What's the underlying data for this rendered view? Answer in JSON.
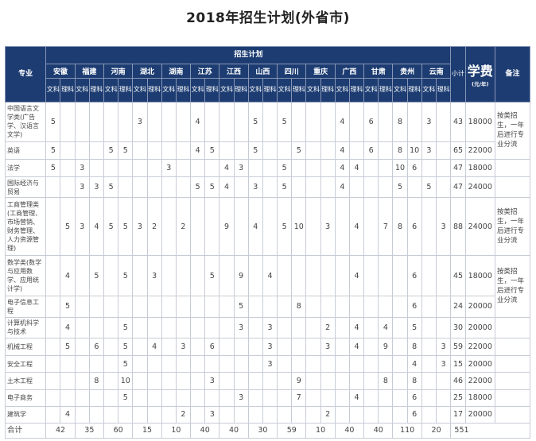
{
  "title": "2018年招生计划(外省市)",
  "headers": {
    "major": "专业",
    "plan": "招生计划",
    "subtotal": "小计",
    "fee": "学费",
    "fee_unit": "(元/年)",
    "note": "备注",
    "provinces": [
      "安徽",
      "福建",
      "河南",
      "湖北",
      "湖南",
      "江苏",
      "江西",
      "山西",
      "四川",
      "重庆",
      "广西",
      "甘肃",
      "贵州",
      "云南"
    ],
    "wen": "文科",
    "li": "理科"
  },
  "rows": [
    {
      "major": "中国语言文学类(广告学、汉语言文学)",
      "v": [
        "5",
        "",
        "",
        "",
        "",
        "",
        "3",
        "",
        "",
        "",
        "4",
        "",
        "",
        "",
        "5",
        "",
        "5",
        "",
        "",
        "",
        "4",
        "",
        "6",
        "",
        "8",
        "",
        "3",
        ""
      ],
      "subtotal": "43",
      "fee": "18000"
    },
    {
      "major": "英语",
      "v": [
        "5",
        "",
        "",
        "",
        "5",
        "5",
        "",
        "",
        "",
        "",
        "4",
        "5",
        "",
        "",
        "5",
        "",
        "",
        "5",
        "",
        "",
        "4",
        "",
        "6",
        "",
        "8",
        "10",
        "3",
        ""
      ],
      "subtotal": "65",
      "fee": "22000"
    },
    {
      "major": "法学",
      "v": [
        "5",
        "",
        "3",
        "",
        "",
        "",
        "",
        "",
        "3",
        "",
        "",
        "",
        "4",
        "3",
        "",
        "",
        "5",
        "",
        "",
        "",
        "4",
        "4",
        "",
        "",
        "10",
        "6",
        "",
        ""
      ],
      "subtotal": "47",
      "fee": "18000"
    },
    {
      "major": "国际经济与贸易",
      "v": [
        "",
        "",
        "3",
        "3",
        "5",
        "",
        "",
        "",
        "",
        "",
        "5",
        "5",
        "4",
        "",
        "3",
        "",
        "5",
        "",
        "",
        "",
        "4",
        "",
        "",
        "",
        "5",
        "",
        "5",
        ""
      ],
      "subtotal": "47",
      "fee": "24000"
    },
    {
      "major": "工商管理类(工商管理、市场营销、财务管理、人力资源管理)",
      "v": [
        "",
        "5",
        "3",
        "4",
        "5",
        "5",
        "3",
        "2",
        "",
        "2",
        "",
        "",
        "9",
        "",
        "4",
        "",
        "5",
        "10",
        "",
        "3",
        "",
        "4",
        "",
        "7",
        "8",
        "6",
        "",
        "3"
      ],
      "subtotal": "88",
      "fee": "24000"
    },
    {
      "major": "数学类(数学与应用数学、应用统计学)",
      "v": [
        "",
        "4",
        "",
        "5",
        "",
        "5",
        "",
        "3",
        "",
        "",
        "",
        "5",
        "",
        "9",
        "",
        "4",
        "",
        "",
        "",
        "",
        "",
        "4",
        "",
        "",
        "",
        "6",
        "",
        ""
      ],
      "subtotal": "45",
      "fee": "18000"
    },
    {
      "major": "电子信息工程",
      "v": [
        "",
        "5",
        "",
        "",
        "",
        "",
        "",
        "",
        "",
        "",
        "",
        "",
        "",
        "5",
        "",
        "",
        "",
        "8",
        "",
        "",
        "",
        "",
        "",
        "",
        "",
        "6",
        "",
        ""
      ],
      "subtotal": "24",
      "fee": "20000"
    },
    {
      "major": "计算机科学与技术",
      "v": [
        "",
        "4",
        "",
        "",
        "",
        "5",
        "",
        "",
        "",
        "",
        "",
        "",
        "",
        "3",
        "",
        "3",
        "",
        "",
        "",
        "2",
        "",
        "4",
        "",
        "4",
        "",
        "5",
        "",
        ""
      ],
      "subtotal": "30",
      "fee": "20000"
    },
    {
      "major": "机械工程",
      "v": [
        "",
        "5",
        "",
        "6",
        "",
        "5",
        "",
        "4",
        "",
        "3",
        "",
        "6",
        "",
        "",
        "",
        "3",
        "",
        "",
        "",
        "3",
        "",
        "4",
        "",
        "9",
        "",
        "8",
        "",
        "3"
      ],
      "subtotal": "59",
      "fee": "22000"
    },
    {
      "major": "安全工程",
      "v": [
        "",
        "",
        "",
        "",
        "",
        "5",
        "",
        "",
        "",
        "",
        "",
        "",
        "",
        "",
        "",
        "3",
        "",
        "",
        "",
        "",
        "",
        "",
        "",
        "",
        "",
        "4",
        "",
        "3"
      ],
      "subtotal": "15",
      "fee": "20000"
    },
    {
      "major": "土木工程",
      "v": [
        "",
        "",
        "",
        "8",
        "",
        "10",
        "",
        "",
        "",
        "",
        "",
        "3",
        "",
        "",
        "",
        "",
        "",
        "9",
        "",
        "",
        "",
        "",
        "",
        "8",
        "",
        "8",
        "",
        ""
      ],
      "subtotal": "46",
      "fee": "22000"
    },
    {
      "major": "电子商务",
      "v": [
        "",
        "",
        "",
        "",
        "",
        "5",
        "",
        "",
        "",
        "",
        "",
        "",
        "",
        "3",
        "",
        "",
        "",
        "7",
        "",
        "",
        "",
        "4",
        "",
        "",
        "",
        "6",
        "",
        ""
      ],
      "subtotal": "25",
      "fee": "18000"
    },
    {
      "major": "建筑学",
      "v": [
        "",
        "4",
        "",
        "",
        "",
        "",
        "",
        "",
        "",
        "2",
        "",
        "3",
        "",
        "",
        "",
        "",
        "",
        "",
        "",
        "2",
        "",
        "",
        "",
        "",
        "",
        "6",
        "",
        ""
      ],
      "subtotal": "17",
      "fee": "20000"
    }
  ],
  "notes": {
    "note_a": "按类招生，一年后进行专业分流",
    "note_b": "按类招生，一年后进行专业分流",
    "note_c": "按类招生，一年后进行专业分流"
  },
  "total": {
    "label": "合计",
    "values": [
      "42",
      "35",
      "60",
      "15",
      "10",
      "40",
      "40",
      "30",
      "59",
      "10",
      "40",
      "40",
      "110",
      "20"
    ],
    "subtotal": "551"
  }
}
